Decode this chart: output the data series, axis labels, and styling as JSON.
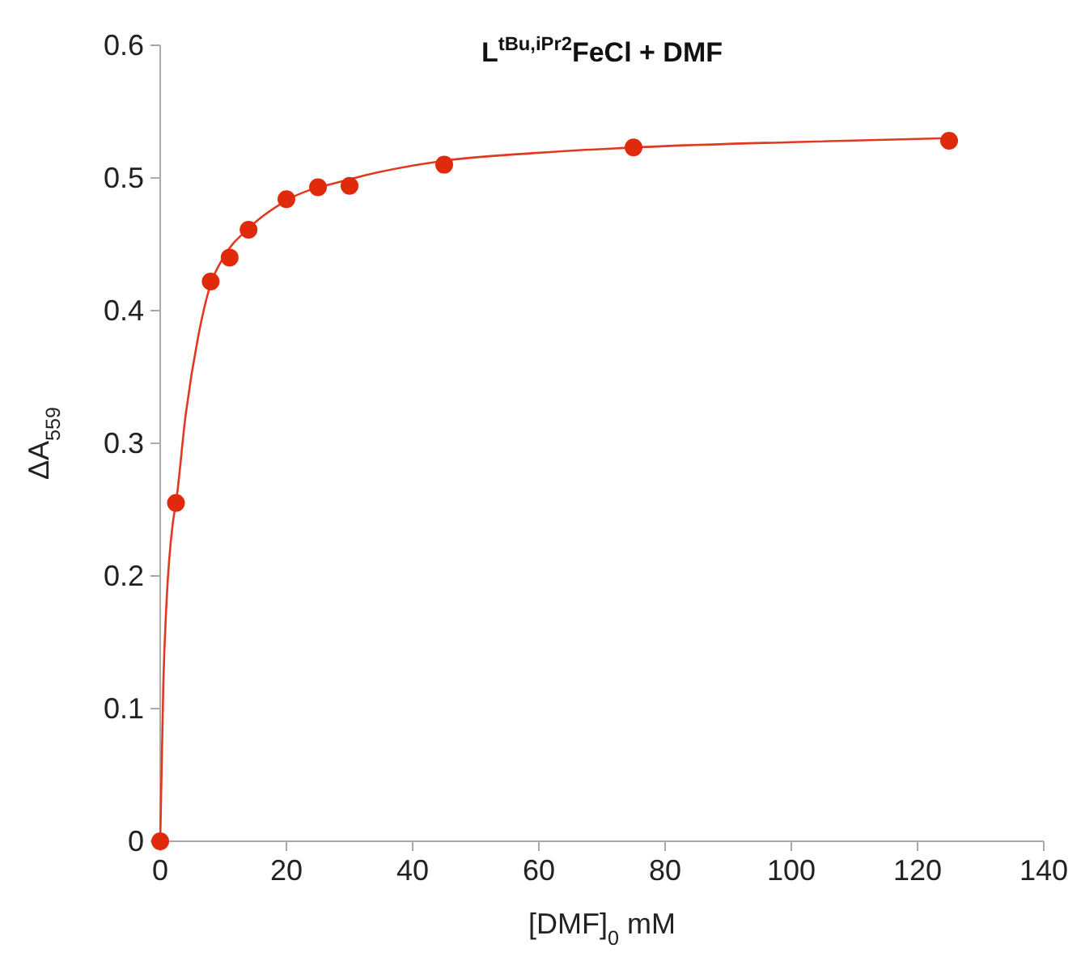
{
  "chart_data": {
    "type": "scatter",
    "title": "L$^{tBu,iPr2}$FeCl + DMF",
    "xlabel": "[DMF]$_{0}$ mM",
    "ylabel": "ΔA$_{559}$",
    "xlim": [
      0,
      140
    ],
    "xticks": [
      0,
      20,
      40,
      60,
      80,
      100,
      120,
      140
    ],
    "ylim": [
      0,
      0.6
    ],
    "yticks": [
      0,
      0.1,
      0.2,
      0.3,
      0.4,
      0.5,
      0.6
    ],
    "grid": false,
    "series": [
      {
        "type": "line",
        "color": "#e0391f",
        "marker": "none",
        "x": [
          0,
          0.5,
          1,
          2,
          2.5,
          4,
          6,
          8,
          10,
          14,
          20,
          30,
          45,
          60,
          80,
          100,
          125
        ],
        "values": [
          0,
          0.12,
          0.18,
          0.24,
          0.255,
          0.32,
          0.38,
          0.42,
          0.44,
          0.462,
          0.483,
          0.499,
          0.513,
          0.519,
          0.524,
          0.527,
          0.53
        ]
      },
      {
        "color": "#e02a0c",
        "marker": "circle",
        "x": [
          0,
          2.5,
          8,
          11,
          14,
          20,
          25,
          30,
          45,
          75,
          125
        ],
        "values": [
          0,
          0.255,
          0.422,
          0.44,
          0.461,
          0.484,
          0.493,
          0.494,
          0.51,
          0.523,
          0.528
        ]
      }
    ]
  }
}
